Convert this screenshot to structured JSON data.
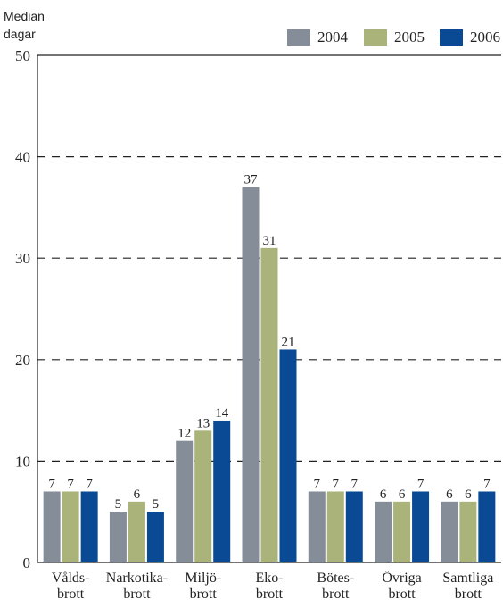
{
  "chart_data": {
    "type": "bar",
    "ylabel": [
      "Median",
      "dagar"
    ],
    "ylim": [
      0,
      50
    ],
    "yticks": [
      0,
      10,
      20,
      30,
      40,
      50
    ],
    "grid": "dashed-horizontal",
    "legend_placement": "top-right",
    "categories": [
      [
        "Vålds-",
        "brott"
      ],
      [
        "Narkotika-",
        "brott"
      ],
      [
        "Miljö-",
        "brott"
      ],
      [
        "Eko-",
        "brott"
      ],
      [
        "Bötes-",
        "brott"
      ],
      [
        "Övriga",
        "brott"
      ],
      [
        "Samtliga",
        "brott"
      ]
    ],
    "series": [
      {
        "name": "2004",
        "color": "#858e98",
        "values": [
          7,
          5,
          12,
          37,
          7,
          6,
          6
        ]
      },
      {
        "name": "2005",
        "color": "#aab37a",
        "values": [
          7,
          6,
          13,
          31,
          7,
          6,
          6
        ]
      },
      {
        "name": "2006",
        "color": "#0a4a94",
        "values": [
          7,
          5,
          14,
          21,
          7,
          7,
          7
        ]
      }
    ]
  }
}
